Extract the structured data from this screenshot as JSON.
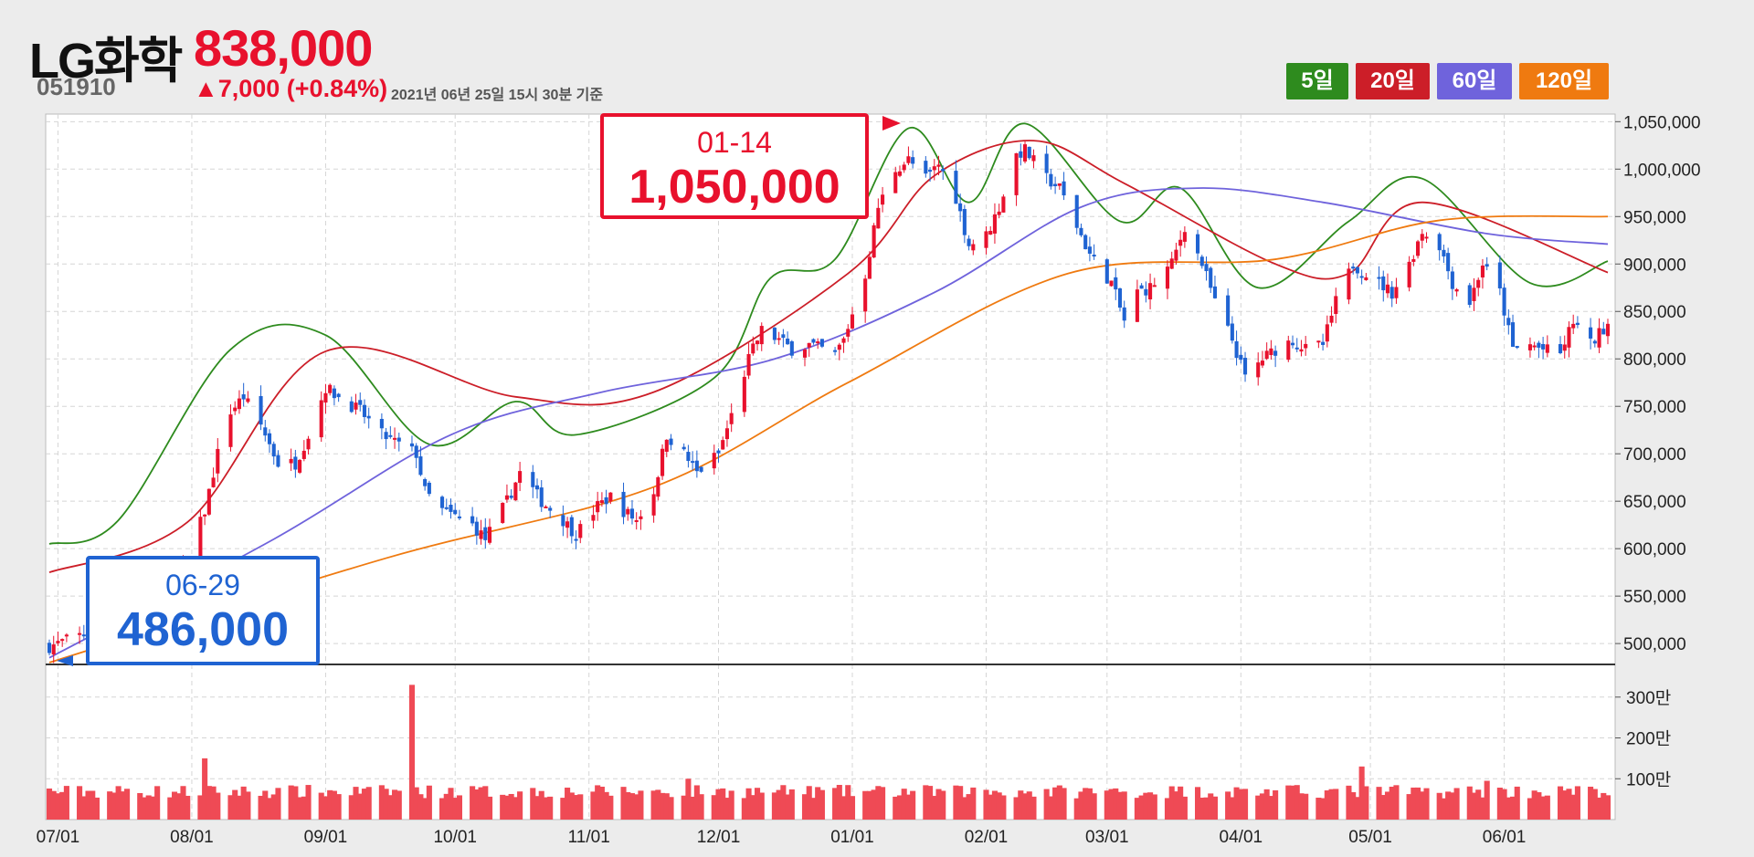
{
  "header": {
    "stock_name": "LG화학",
    "stock_code": "051910",
    "price": "838,000",
    "change": "▲7,000 (+0.84%)",
    "timestamp": "2021년 06년 25일 15시 30분 기준"
  },
  "ma_buttons": [
    {
      "label": "5일",
      "color": "#2e8b1e"
    },
    {
      "label": "20일",
      "color": "#cc1e28"
    },
    {
      "label": "60일",
      "color": "#6f63dc"
    },
    {
      "label": "120일",
      "color": "#ef7a10"
    }
  ],
  "annotations": {
    "high": {
      "date": "01-14",
      "value": "1,050,000"
    },
    "low": {
      "date": "06-29",
      "value": "486,000"
    }
  },
  "colors": {
    "up": "#e8112d",
    "down": "#1f63d2",
    "volume": "#ef4a55",
    "ma5": "#2e8b1e",
    "ma20": "#cc1e28",
    "ma60": "#6f63dc",
    "ma120": "#ef7a10"
  },
  "chart_data": {
    "type": "candlestick",
    "x_range": [
      "2020-06-29",
      "2021-06-25"
    ],
    "x_ticks": [
      "07/01",
      "08/01",
      "09/01",
      "10/01",
      "11/01",
      "12/01",
      "01/01",
      "02/01",
      "03/01",
      "04/01",
      "05/01",
      "06/01"
    ],
    "price_axis": {
      "ticks": [
        "500,000",
        "550,000",
        "600,000",
        "650,000",
        "700,000",
        "750,000",
        "800,000",
        "850,000",
        "900,000",
        "950,000",
        "1,000,000",
        "1,050,000"
      ],
      "ylim": [
        478000,
        1058000
      ]
    },
    "volume_axis": {
      "ticks": [
        "100만",
        "200만",
        "300만"
      ],
      "ylim": [
        0,
        3800000
      ]
    },
    "grid": true,
    "close_anchors": [
      [
        "2020-06-29",
        497000
      ],
      [
        "2020-07-07",
        510000
      ],
      [
        "2020-07-15",
        525000
      ],
      [
        "2020-07-24",
        545000
      ],
      [
        "2020-07-31",
        588000
      ],
      [
        "2020-08-04",
        640000
      ],
      [
        "2020-08-07",
        700000
      ],
      [
        "2020-08-10",
        745000
      ],
      [
        "2020-08-13",
        760000
      ],
      [
        "2020-08-17",
        730000
      ],
      [
        "2020-08-21",
        690000
      ],
      [
        "2020-08-25",
        690000
      ],
      [
        "2020-08-28",
        720000
      ],
      [
        "2020-09-01",
        770000
      ],
      [
        "2020-09-04",
        760000
      ],
      [
        "2020-09-09",
        745000
      ],
      [
        "2020-09-14",
        720000
      ],
      [
        "2020-09-18",
        710000
      ],
      [
        "2020-09-22",
        700000
      ],
      [
        "2020-09-24",
        660000
      ],
      [
        "2020-09-28",
        640000
      ],
      [
        "2020-10-05",
        625000
      ],
      [
        "2020-10-08",
        610000
      ],
      [
        "2020-10-13",
        650000
      ],
      [
        "2020-10-16",
        680000
      ],
      [
        "2020-10-21",
        650000
      ],
      [
        "2020-10-26",
        630000
      ],
      [
        "2020-10-29",
        615000
      ],
      [
        "2020-11-03",
        645000
      ],
      [
        "2020-11-06",
        655000
      ],
      [
        "2020-11-09",
        640000
      ],
      [
        "2020-11-12",
        630000
      ],
      [
        "2020-11-16",
        660000
      ],
      [
        "2020-11-19",
        720000
      ],
      [
        "2020-11-23",
        700000
      ],
      [
        "2020-11-26",
        680000
      ],
      [
        "2020-12-01",
        700000
      ],
      [
        "2020-12-04",
        740000
      ],
      [
        "2020-12-08",
        800000
      ],
      [
        "2020-12-11",
        830000
      ],
      [
        "2020-12-15",
        820000
      ],
      [
        "2020-12-18",
        810000
      ],
      [
        "2020-12-22",
        815000
      ],
      [
        "2020-12-28",
        805000
      ],
      [
        "2020-12-30",
        820000
      ],
      [
        "2021-01-04",
        889000
      ],
      [
        "2021-01-07",
        960000
      ],
      [
        "2021-01-11",
        1000000
      ],
      [
        "2021-01-14",
        1010000
      ],
      [
        "2021-01-18",
        990000
      ],
      [
        "2021-01-21",
        1005000
      ],
      [
        "2021-01-25",
        970000
      ],
      [
        "2021-01-28",
        920000
      ],
      [
        "2021-02-01",
        930000
      ],
      [
        "2021-02-04",
        960000
      ],
      [
        "2021-02-08",
        1015000
      ],
      [
        "2021-02-10",
        1020000
      ],
      [
        "2021-02-15",
        990000
      ],
      [
        "2021-02-18",
        980000
      ],
      [
        "2021-02-22",
        940000
      ],
      [
        "2021-02-25",
        910000
      ],
      [
        "2021-03-02",
        880000
      ],
      [
        "2021-03-05",
        840000
      ],
      [
        "2021-03-08",
        870000
      ],
      [
        "2021-03-11",
        875000
      ],
      [
        "2021-03-16",
        900000
      ],
      [
        "2021-03-19",
        940000
      ],
      [
        "2021-03-23",
        900000
      ],
      [
        "2021-03-26",
        860000
      ],
      [
        "2021-03-30",
        820000
      ],
      [
        "2021-04-02",
        780000
      ],
      [
        "2021-04-06",
        800000
      ],
      [
        "2021-04-09",
        810000
      ],
      [
        "2021-04-13",
        820000
      ],
      [
        "2021-04-16",
        810000
      ],
      [
        "2021-04-20",
        815000
      ],
      [
        "2021-04-23",
        860000
      ],
      [
        "2021-04-27",
        900000
      ],
      [
        "2021-05-03",
        880000
      ],
      [
        "2021-05-06",
        870000
      ],
      [
        "2021-05-10",
        900000
      ],
      [
        "2021-05-13",
        935000
      ],
      [
        "2021-05-17",
        920000
      ],
      [
        "2021-05-20",
        880000
      ],
      [
        "2021-05-24",
        860000
      ],
      [
        "2021-05-27",
        900000
      ],
      [
        "2021-05-31",
        870000
      ],
      [
        "2021-06-03",
        810000
      ],
      [
        "2021-06-07",
        815000
      ],
      [
        "2021-06-10",
        810000
      ],
      [
        "2021-06-14",
        805000
      ],
      [
        "2021-06-17",
        840000
      ],
      [
        "2021-06-21",
        815000
      ],
      [
        "2021-06-25",
        838000
      ]
    ],
    "volume_spikes": [
      [
        "2020-09-21",
        3300000
      ],
      [
        "2020-08-04",
        1500000
      ],
      [
        "2021-04-29",
        1300000
      ],
      [
        "2020-11-24",
        1000000
      ],
      [
        "2021-05-28",
        950000
      ]
    ],
    "series": [
      {
        "name": "5일",
        "values": [
          {
            "x": "2020-06-29",
            "y": 605000
          },
          {
            "x": "2020-07-15",
            "y": 630000
          },
          {
            "x": "2020-08-10",
            "y": 810000
          },
          {
            "x": "2020-09-01",
            "y": 825000
          },
          {
            "x": "2020-09-25",
            "y": 710000
          },
          {
            "x": "2020-10-15",
            "y": 755000
          },
          {
            "x": "2020-10-29",
            "y": 720000
          },
          {
            "x": "2020-11-30",
            "y": 780000
          },
          {
            "x": "2020-12-13",
            "y": 885000
          },
          {
            "x": "2020-12-28",
            "y": 905000
          },
          {
            "x": "2021-01-14",
            "y": 1043000
          },
          {
            "x": "2021-01-28",
            "y": 965000
          },
          {
            "x": "2021-02-10",
            "y": 1048000
          },
          {
            "x": "2021-03-04",
            "y": 945000
          },
          {
            "x": "2021-03-18",
            "y": 980000
          },
          {
            "x": "2021-04-05",
            "y": 875000
          },
          {
            "x": "2021-04-26",
            "y": 945000
          },
          {
            "x": "2021-05-13",
            "y": 990000
          },
          {
            "x": "2021-06-07",
            "y": 880000
          },
          {
            "x": "2021-06-25",
            "y": 903000
          }
        ]
      },
      {
        "name": "20일",
        "values": [
          {
            "x": "2020-06-29",
            "y": 575000
          },
          {
            "x": "2020-07-31",
            "y": 628000
          },
          {
            "x": "2020-09-01",
            "y": 808000
          },
          {
            "x": "2020-10-15",
            "y": 760000
          },
          {
            "x": "2020-11-16",
            "y": 765000
          },
          {
            "x": "2020-12-31",
            "y": 890000
          },
          {
            "x": "2021-01-20",
            "y": 993000
          },
          {
            "x": "2021-02-12",
            "y": 1030000
          },
          {
            "x": "2021-03-05",
            "y": 985000
          },
          {
            "x": "2021-04-09",
            "y": 900000
          },
          {
            "x": "2021-04-26",
            "y": 890000
          },
          {
            "x": "2021-05-13",
            "y": 965000
          },
          {
            "x": "2021-06-25",
            "y": 891000
          }
        ]
      },
      {
        "name": "60일",
        "values": [
          {
            "x": "2020-06-29",
            "y": 485000
          },
          {
            "x": "2020-08-20",
            "y": 610000
          },
          {
            "x": "2020-09-30",
            "y": 720000
          },
          {
            "x": "2020-11-04",
            "y": 765000
          },
          {
            "x": "2020-12-14",
            "y": 800000
          },
          {
            "x": "2021-01-20",
            "y": 870000
          },
          {
            "x": "2021-02-23",
            "y": 960000
          },
          {
            "x": "2021-03-22",
            "y": 980000
          },
          {
            "x": "2021-04-20",
            "y": 965000
          },
          {
            "x": "2021-05-28",
            "y": 932000
          },
          {
            "x": "2021-06-25",
            "y": 921000
          }
        ]
      },
      {
        "name": "120일",
        "values": [
          {
            "x": "2020-06-29",
            "y": 480000
          },
          {
            "x": "2020-09-15",
            "y": 590000
          },
          {
            "x": "2020-11-16",
            "y": 665000
          },
          {
            "x": "2020-12-31",
            "y": 775000
          },
          {
            "x": "2021-02-20",
            "y": 890000
          },
          {
            "x": "2021-04-09",
            "y": 905000
          },
          {
            "x": "2021-05-17",
            "y": 946000
          },
          {
            "x": "2021-06-25",
            "y": 950000
          }
        ]
      }
    ]
  }
}
